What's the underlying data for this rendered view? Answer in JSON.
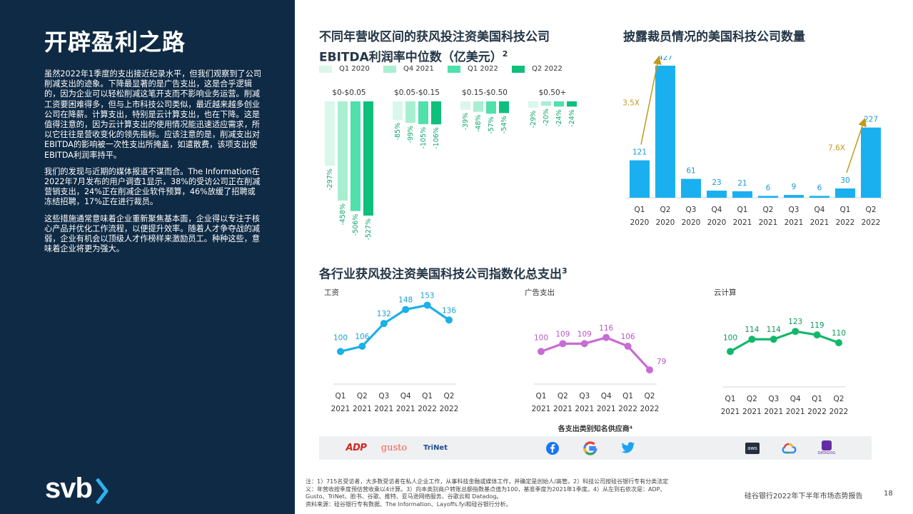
{
  "page": {
    "title": "开辟盈利之路",
    "paragraphs": [
      "虽然2022年1季度的支出接近纪录水平，但我们观察到了公司削减支出的迹象。下降最显著的是广告支出，这是合乎逻辑的，因为企业可以轻松削减这笔开支而不影响业务运营。削减工资要困难得多，但与上市科技公司类似，最近越来越多创业公司在降薪。计算支出，特别是云计算支出，也在下降。这是值得注意的，因为云计算支出的使用情况能迅速适应需求，所以它往往是营收变化的领先指标。应该注意的是，削减支出对EBITDA的影响被一次性支出所掩盖，如遣散费，该项支出使EBITDA利润率持平。",
      "我们的发现与近期的媒体报道不谋而合。The Information在2022年7月发布的用户调查1显示，38%的受访公司正在削减营销支出，24%正在削减企业软件预算，46%放缓了招聘或冻结招聘，17%正在进行裁员。",
      "这些措施通常意味着企业重新聚焦基本面，企业得以专注于核心产品并优化工作流程，以便提升效率。随着人才争夺战的减弱，企业有机会以顶级人才作榜样来激励员工。种种这些，意味着企业将更为强大。"
    ],
    "logo_text": "svb",
    "footer_title": "硅谷银行2022年下半年市场态势报告",
    "page_number": "18",
    "footnote": "注：1）715名受访者，大多数受访者在私人企业工作，从事科技金融或媒体工作，并确定是创始人/高管。2）科技公司按硅谷银行专有分类法定义：年营收按季度预估营收乘以4计算。3）向本类别商户转账总额指数基点值为100，基准季度为2021年1季度。4）从左到右依次是：ADP、Gusto、TriNet、脸书、谷歌、推特、亚马逊网络服务、谷歌云和 Datadog。",
    "source": "资料来源：硅谷银行专有数据、The Information、Layoffs.fyi和硅谷银行分析。",
    "vendors_title": "各支出类别知名供应商⁴",
    "vendors": [
      {
        "name": "ADP",
        "icon": "adp-logo",
        "color": "#d0271d"
      },
      {
        "name": "gusto",
        "icon": "gusto-logo",
        "color": "#f45d48"
      },
      {
        "name": "TriNet",
        "icon": "trinet-logo",
        "color": "#1f4e8c"
      },
      {
        "name": "",
        "icon": "facebook-icon",
        "color": "#1877f2"
      },
      {
        "name": "",
        "icon": "google-icon",
        "color": "#4285f4"
      },
      {
        "name": "",
        "icon": "twitter-icon",
        "color": "#1da1f2"
      },
      {
        "name": "aws",
        "icon": "aws-logo",
        "color": "#232f3e"
      },
      {
        "name": "",
        "icon": "google-cloud-icon",
        "color": "#4285f4"
      },
      {
        "name": "DATADOG",
        "icon": "datadog-logo",
        "color": "#632ca6"
      }
    ]
  },
  "chart_data": [
    {
      "type": "bar",
      "title": "不同年营收区间的获风投注资美国科技公司EBITDA利润率中位数（亿美元）",
      "title_sup": "2",
      "legend_placement": "top-left",
      "groups": [
        "$0-$0.05",
        "$0.05-$0.15",
        "$0.15-$0.50",
        "$0.50+"
      ],
      "series": [
        {
          "name": "Q1 2020",
          "color": "#d9f7ea",
          "values": [
            -297,
            -85,
            -39,
            -29
          ],
          "labels": [
            "-297%",
            "-85%",
            "-39%",
            "-29%"
          ]
        },
        {
          "name": "Q4 2021",
          "color": "#a8efd1",
          "values": [
            -458,
            -99,
            -48,
            -20
          ],
          "labels": [
            "-458%",
            "-99%",
            "-48%",
            "-20%"
          ]
        },
        {
          "name": "Q1 2022",
          "color": "#4fe0ac",
          "values": [
            -506,
            -105,
            -57,
            -24
          ],
          "labels": [
            "-506%",
            "-105%",
            "-57%",
            "-24%"
          ]
        },
        {
          "name": "Q2 2022",
          "color": "#0fbf7c",
          "values": [
            -527,
            -106,
            -54,
            -24
          ],
          "labels": [
            "-527%",
            "-106%",
            "-54%",
            "-24%"
          ]
        }
      ],
      "grid": false
    },
    {
      "type": "bar",
      "title": "披露裁员情况的美国科技公司数量",
      "categories": [
        [
          "Q1",
          "2020"
        ],
        [
          "Q2",
          "2020"
        ],
        [
          "Q3",
          "2020"
        ],
        [
          "Q4",
          "2020"
        ],
        [
          "Q1",
          "2021"
        ],
        [
          "Q2",
          "2021"
        ],
        [
          "Q3",
          "2021"
        ],
        [
          "Q4",
          "2021"
        ],
        [
          "Q1",
          "2022"
        ],
        [
          "Q2",
          "2022"
        ]
      ],
      "values": [
        121,
        427,
        61,
        23,
        21,
        6,
        9,
        6,
        30,
        227
      ],
      "color": "#1ab0f0",
      "label_color": "#1a9ad6",
      "annotations": [
        {
          "text": "3.5X",
          "from_index": 0,
          "to_index": 1,
          "color": "#c29a1a"
        },
        {
          "text": "7.6X",
          "from_index": 8,
          "to_index": 9,
          "color": "#c29a1a"
        }
      ],
      "grid": false
    },
    {
      "type": "line",
      "title": "各行业获风投注资美国科技公司指数化总支出",
      "title_sup": "3",
      "panels": [
        {
          "name": "工资",
          "color": "#1ab0e8",
          "label_color": "#1aa0d8",
          "values": [
            100,
            106,
            132,
            148,
            153,
            136
          ]
        },
        {
          "name": "广告支出",
          "color": "#c86cd4",
          "label_color": "#b657c4",
          "values": [
            100,
            109,
            109,
            116,
            106,
            79
          ]
        },
        {
          "name": "云计算",
          "color": "#12b86a",
          "label_color": "#0e9a57",
          "values": [
            100,
            114,
            114,
            123,
            119,
            110
          ]
        }
      ],
      "categories": [
        [
          "Q1",
          "2021"
        ],
        [
          "Q2",
          "2021"
        ],
        [
          "Q3",
          "2021"
        ],
        [
          "Q4",
          "2021"
        ],
        [
          "Q1",
          "2022"
        ],
        [
          "Q2",
          "2022"
        ]
      ],
      "grid": false
    }
  ]
}
